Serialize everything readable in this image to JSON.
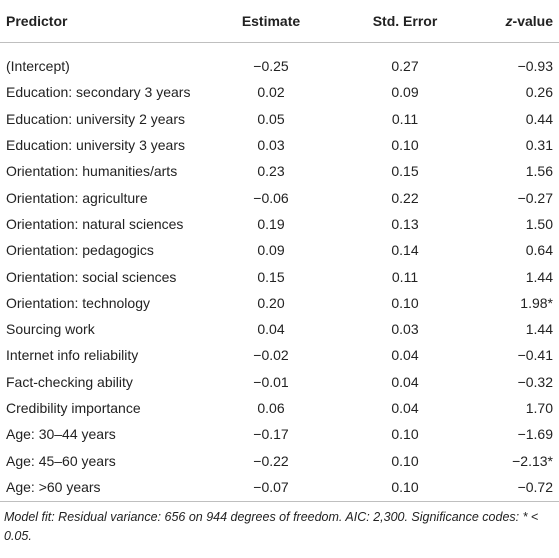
{
  "table": {
    "headers": {
      "predictor": "Predictor",
      "estimate": "Estimate",
      "std_error": "Std. Error",
      "z_italic": "z",
      "z_rest": "-value"
    },
    "rows": [
      {
        "predictor": "(Intercept)",
        "estimate": "−0.25",
        "std_error": "0.27",
        "z_value": "−0.93"
      },
      {
        "predictor": "Education: secondary 3 years",
        "estimate": "0.02",
        "std_error": "0.09",
        "z_value": "0.26"
      },
      {
        "predictor": "Education: university 2 years",
        "estimate": "0.05",
        "std_error": "0.11",
        "z_value": "0.44"
      },
      {
        "predictor": "Education: university 3 years",
        "estimate": "0.03",
        "std_error": "0.10",
        "z_value": "0.31"
      },
      {
        "predictor": "Orientation: humanities/arts",
        "estimate": "0.23",
        "std_error": "0.15",
        "z_value": "1.56"
      },
      {
        "predictor": "Orientation: agriculture",
        "estimate": "−0.06",
        "std_error": "0.22",
        "z_value": "−0.27"
      },
      {
        "predictor": "Orientation: natural sciences",
        "estimate": "0.19",
        "std_error": "0.13",
        "z_value": "1.50"
      },
      {
        "predictor": "Orientation: pedagogics",
        "estimate": "0.09",
        "std_error": "0.14",
        "z_value": "0.64"
      },
      {
        "predictor": "Orientation: social sciences",
        "estimate": "0.15",
        "std_error": "0.11",
        "z_value": "1.44"
      },
      {
        "predictor": "Orientation: technology",
        "estimate": "0.20",
        "std_error": "0.10",
        "z_value": "1.98*"
      },
      {
        "predictor": "Sourcing work",
        "estimate": "0.04",
        "std_error": "0.03",
        "z_value": "1.44"
      },
      {
        "predictor": "Internet info reliability",
        "estimate": "−0.02",
        "std_error": "0.04",
        "z_value": "−0.41"
      },
      {
        "predictor": "Fact-checking ability",
        "estimate": "−0.01",
        "std_error": "0.04",
        "z_value": "−0.32"
      },
      {
        "predictor": "Credibility importance",
        "estimate": "0.06",
        "std_error": "0.04",
        "z_value": "1.70"
      },
      {
        "predictor": "Age: 30–44 years",
        "estimate": "−0.17",
        "std_error": "0.10",
        "z_value": "−1.69"
      },
      {
        "predictor": "Age: 45–60 years",
        "estimate": "−0.22",
        "std_error": "0.10",
        "z_value": "−2.13*"
      },
      {
        "predictor": "Age: >60 years",
        "estimate": "−0.07",
        "std_error": "0.10",
        "z_value": "−0.72"
      }
    ]
  },
  "footnote": "Model fit: Residual variance: 656 on 944 degrees of freedom. AIC: 2,300. Significance codes: * < 0.05."
}
